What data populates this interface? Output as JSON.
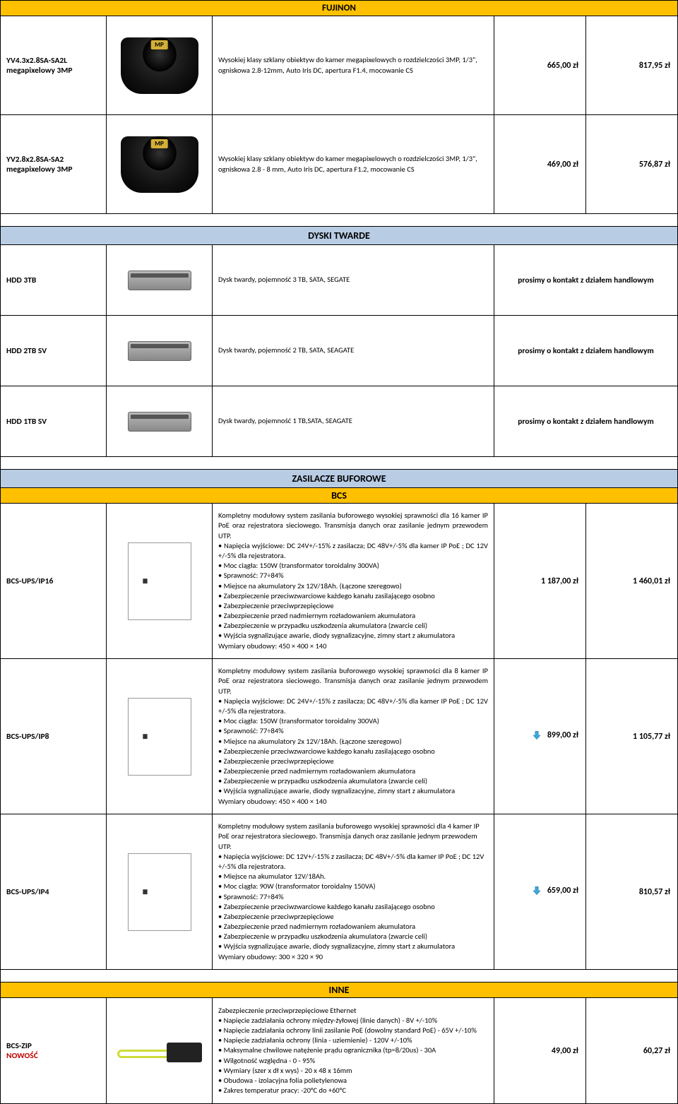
{
  "sections": {
    "fujinon": "FUJINON",
    "dyski": "DYSKI TWARDE",
    "zasilacze": "ZASILACZE BUFOROWE",
    "bcs": "BCS",
    "inne": "INNE"
  },
  "contact_text": "prosimy o kontakt z działem handlowym",
  "nowosc": "NOWOŚĆ",
  "fujinon_rows": [
    {
      "code": "YV4.3x2.8SA-SA2L megapixelowy 3MP",
      "desc": "Wysokiej klasy szklany obiektyw do kamer megapixelowych o rozdzielczości 3MP, 1/3\", ogniskowa 2.8-12mm, Auto Iris DC, apertura F1.4, mocowanie CS",
      "p1": "665,00 zł",
      "p2": "817,95 zł"
    },
    {
      "code": "YV2.8x2.8SA-SA2 megapixelowy 3MP",
      "desc": "Wysokiej klasy szklany obiektyw do kamer megapixelowych o rozdzielczości 3MP, 1/3\", ogniskowa 2.8 - 8 mm, Auto Iris DC, apertura F1.2, mocowanie CS",
      "p1": "469,00 zł",
      "p2": "576,87 zł"
    }
  ],
  "hdd_rows": [
    {
      "code": "HDD 3TB",
      "desc": "Dysk twardy, pojemność  3 TB, SATA, SEGATE"
    },
    {
      "code": "HDD 2TB SV",
      "desc": "Dysk twardy, pojemność  2 TB, SATA, SEAGATE"
    },
    {
      "code": "HDD 1TB SV",
      "desc": "Dysk twardy, pojemność  1 TB,SATA, SEAGATE"
    }
  ],
  "ups_rows": [
    {
      "code": "BCS-UPS/IP16",
      "desc": "Kompletny modułowy system zasilania buforowego wysokiej sprawności dla 16 kamer IP PoE oraz rejestratora sieciowego. Transmisja danych oraz zasilanie jednym przewodem UTP.\n• Napięcia wyjściowe: DC 24V+/-15% z zasilacza; DC  48V+/-5%  dla kamer IP PoE ; DC 12V +/-5%  dla rejestratora.\n• Moc ciągła: 150W (transformator toroidalny 300VA)\n• Sprawność: 77÷84%\n• Miejsce na akumulatory  2x 12V/18Ah. (Łączone szeregowo)\n• Zabezpieczenie przeciwzwarciowe każdego kanału zasilającego osobno\n• Zabezpieczenie przeciwprzepięciowe\n• Zabezpieczenie przed nadmiernym rozładowaniem akumulatora\n• Zabezpieczenie w przypadku uszkodzenia akumulatora (zwarcie celi)\n• Wyjścia sygnalizujące awarie, diody sygnalizacyjne, zimny start z akumulatora\nWymiary obudowy: 450 × 400 × 140",
      "p1": "1 187,00 zł",
      "p2": "1 460,01 zł",
      "arrow": false
    },
    {
      "code": "BCS-UPS/IP8",
      "desc": "Kompletny modułowy system zasilania buforowego wysokiej sprawności dla 8 kamer IP PoE oraz rejestratora sieciowego. Transmisja danych oraz zasilanie jednym przewodem UTP.\n• Napięcia wyjściowe: DC 24V+/-15% z zasilacza; DC  48V+/-5%  dla kamer IP PoE ; DC 12V +/-5%  dla rejestratora.\n• Moc ciągła: 150W  (transformator toroidalny 300VA)\n• Sprawność: 77÷84%\n• Miejsce na akumulatory  2x 12V/18Ah. (Łączone szeregowo)\n• Zabezpieczenie przeciwzwarciowe każdego kanału zasilającego osobno\n• Zabezpieczenie przeciwprzepięciowe\n• Zabezpieczenie przed nadmiernym rozładowaniem akumulatora\n• Zabezpieczenie w przypadku uszkodzenia akumulatora (zwarcie celi)\n• Wyjścia sygnalizujące awarie, diody sygnalizacyjne, zimny start z akumulatora\nWymiary obudowy: 450 × 400 × 140",
      "p1": "899,00 zł",
      "p2": "1 105,77 zł",
      "arrow": true
    },
    {
      "code": "BCS-UPS/IP4",
      "desc": "Kompletny modułowy system zasilania buforowego wysokiej sprawności dla 4 kamer IP PoE oraz rejestratora sieciowego. Transmisja danych oraz zasilanie jednym przewodem UTP.\n• Napięcia wyjściowe: DC 12V+/-15% z zasilacza; DC  48V+/-5% dla kamer IP PoE ; DC 12V +/-5%  dla rejestratora.\n• Miejsce na  akumulator  12V/18Ah.\n• Moc ciągła: 90W (transformator toroidalny 150VA)\n• Sprawność: 77÷84%\n• Zabezpieczenie przeciwzwarciowe każdego kanału zasilającego osobno\n• Zabezpieczenie przeciwprzepięciowe\n• Zabezpieczenie przed nadmiernym rozładowaniem akumulatora\n• Zabezpieczenie w przypadku uszkodzenia akumulatora (zwarcie celi)\n• Wyjścia sygnalizujące awarie, diody sygnalizacyjne, zimny start z akumulatora\nWymiary obudowy: 300 × 320 × 90",
      "p1": "659,00 zł",
      "p2": "810,57 zł",
      "arrow": true
    }
  ],
  "inne_rows": [
    {
      "code": "BCS-ZIP",
      "nowosc": true,
      "desc": "Zabezpieczenie przeciwprzepięciowe Ethernet\n• Napięcie zadziałania ochrony między-żyłowej  (linie danych) - 8V +/-10%\n• Napięcie zadziałania ochrony linii zasilanie PoE (dowolny standard PoE) - 65V +/-10%\n• Napięcie zadziałania ochrony (linia - uziemienie) - 120V +/-10%\n• Maksymalne chwilowe natężenie prądu ogranicznika (tp=8/20us) - 30A\n• Wilgotność względna - 0 - 95%\n• Wymiary (szer x dł x wys) - 20 x 48 x 16mm\n• Obudowa - izolacyjna folia polietylenowa\n• Zakres temperatur pracy: -20°C do +60°C",
      "p1": "49,00 zł",
      "p2": "60,27 zł"
    }
  ],
  "colors": {
    "orange": "#ffc000",
    "blue": "#b8cce4",
    "red": "#c00000",
    "arrow": "#3ba9e0"
  }
}
